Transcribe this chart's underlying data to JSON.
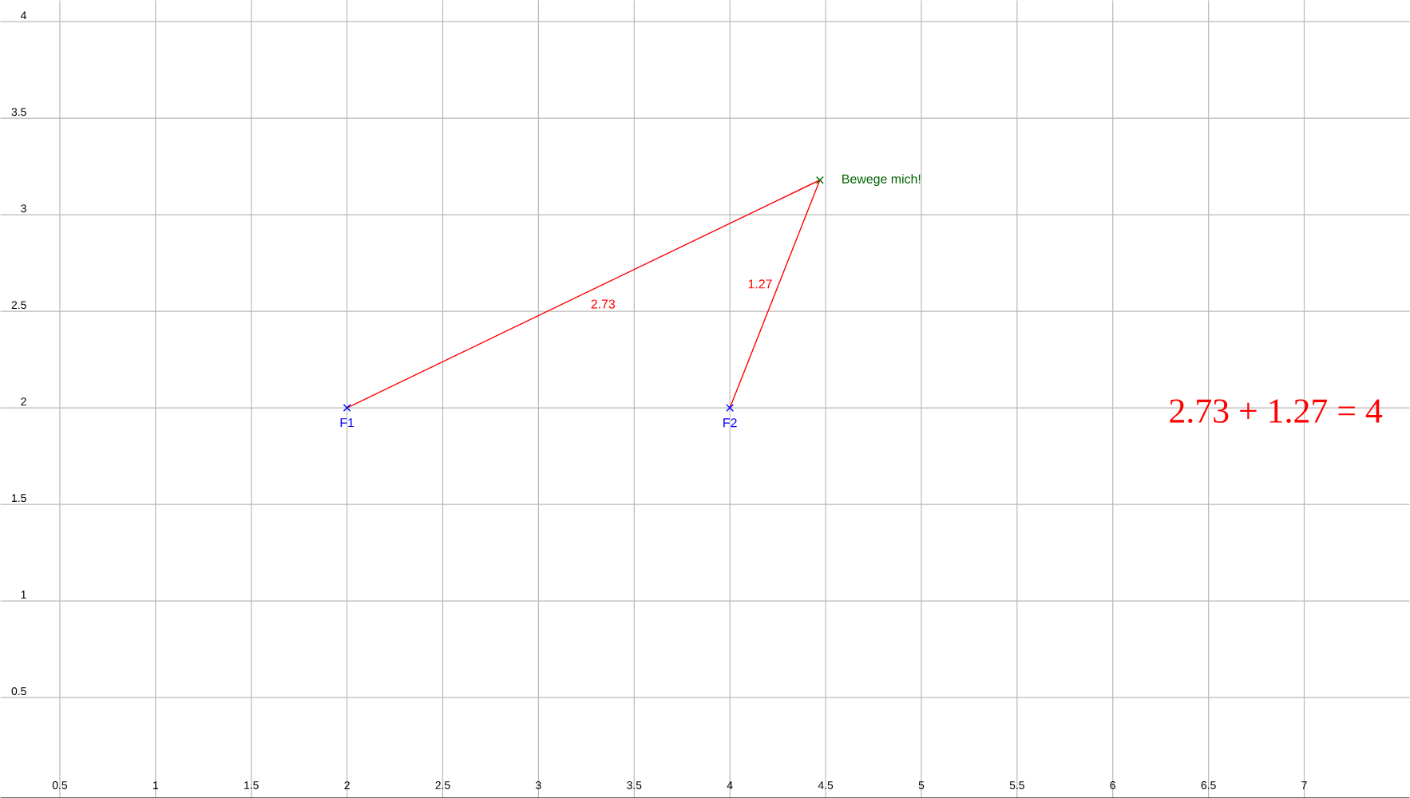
{
  "chart_data": {
    "type": "scatter",
    "series": [
      {
        "type": "line",
        "color": "#ff0000",
        "x": [
          2,
          4.47,
          4
        ],
        "values": [
          2,
          3.18,
          2
        ],
        "marker": "none"
      },
      {
        "name": "F1",
        "color": "#0000ff",
        "x": [
          2
        ],
        "values": [
          2
        ],
        "marker": "cross"
      },
      {
        "name": "F2",
        "color": "#0000ff",
        "x": [
          4
        ],
        "values": [
          2
        ],
        "marker": "cross"
      },
      {
        "name": "Bewege mich!",
        "color": "#006400",
        "x": [
          4.47
        ],
        "values": [
          3.18
        ],
        "marker": "cross"
      }
    ],
    "annotations": [
      "2.73",
      "1.27",
      "2.73 + 1.27 = 4"
    ],
    "xlim": [
      0.19,
      7.55
    ],
    "ylim": [
      -0.02,
      4.11
    ],
    "xticks": [
      0.5,
      1,
      1.5,
      2,
      2.5,
      3,
      3.5,
      4,
      4.5,
      5,
      5.5,
      6,
      6.5,
      7
    ],
    "yticks": [
      0.5,
      1,
      1.5,
      2,
      2.5,
      3,
      3.5,
      4
    ],
    "grid": true
  }
}
